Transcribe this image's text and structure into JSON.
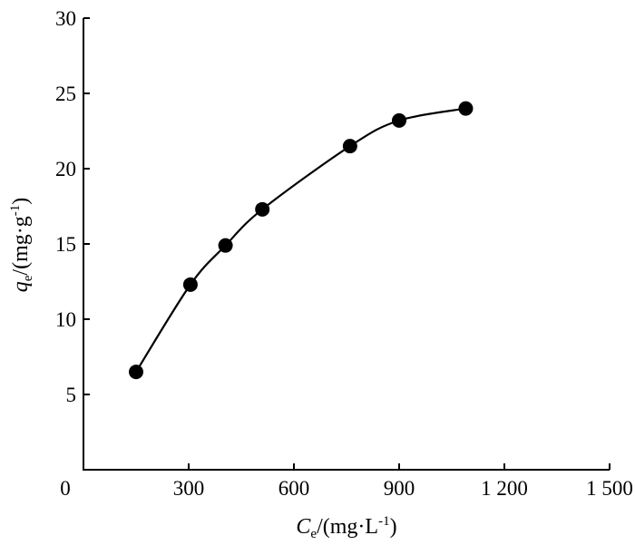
{
  "chart_data": {
    "type": "line",
    "title": "",
    "x_axis": {
      "var": "C",
      "sub": "e",
      "unit_pre": "/(mg·L",
      "unit_sup": "-1",
      "unit_post": ")",
      "range": [
        0,
        1500
      ],
      "ticks": [
        0,
        300,
        600,
        900,
        1200,
        1500
      ],
      "tick_labels": [
        "0",
        "300",
        "600",
        "900",
        "1 200",
        "1 500"
      ]
    },
    "y_axis": {
      "var": "q",
      "sub": "e",
      "unit_pre": "/(mg·g",
      "unit_sup": "-1",
      "unit_post": ")",
      "range": [
        0,
        30
      ],
      "ticks": [
        5,
        10,
        15,
        20,
        25,
        30
      ],
      "tick_labels": [
        "5",
        "10",
        "15",
        "20",
        "25",
        "30"
      ]
    },
    "series": [
      {
        "x": [
          150,
          305,
          405,
          510,
          760,
          900,
          1090
        ],
        "y": [
          6.5,
          12.3,
          14.9,
          17.3,
          21.5,
          23.2,
          24.0
        ]
      }
    ],
    "grid": false,
    "legend": "none",
    "colors": {
      "line": "#000000",
      "marker": "#000000",
      "axis": "#000000"
    }
  }
}
